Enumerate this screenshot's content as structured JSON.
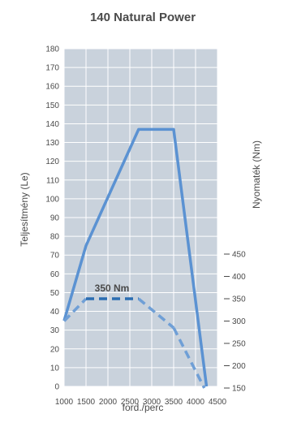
{
  "chart_data": {
    "type": "line",
    "title": "140 Natural Power",
    "xlabel": "ford./perc",
    "ylabel_left": "Teljesítmény (Le)",
    "ylabel_right": "Nyomaték (Nm)",
    "x_ticks": [
      "1000",
      "1500",
      "2000",
      "2500",
      "3000",
      "3500",
      "4000",
      "4500"
    ],
    "xlim": [
      1000,
      4500
    ],
    "y_left_ticks": [
      "0",
      "10",
      "20",
      "30",
      "40",
      "50",
      "60",
      "70",
      "80",
      "90",
      "100",
      "110",
      "120",
      "130",
      "140",
      "150",
      "160",
      "170",
      "180"
    ],
    "ylim_left": [
      0,
      180
    ],
    "y_right_ticks": [
      "150",
      "200",
      "250",
      "300",
      "350",
      "400",
      "450"
    ],
    "ylim_right": [
      150,
      450
    ],
    "grid": true,
    "colors": {
      "plot_background": "#c9d2dc",
      "grid": "#ffffff",
      "power": "#5b92d2",
      "torque_solid": "#2b6db1",
      "torque_dashed": "#6f9fd6"
    },
    "series": [
      {
        "axis": "left",
        "style": "solid",
        "x": [
          1000,
          1500,
          2700,
          3500,
          4250
        ],
        "y": [
          35,
          75,
          137,
          137,
          0
        ]
      },
      {
        "axis": "right",
        "style": "dashed",
        "x": [
          1000,
          1500,
          2700,
          3500,
          4200
        ],
        "y": [
          300,
          350,
          350,
          285,
          150
        ]
      }
    ],
    "annotations": [
      "350 Nm"
    ]
  }
}
